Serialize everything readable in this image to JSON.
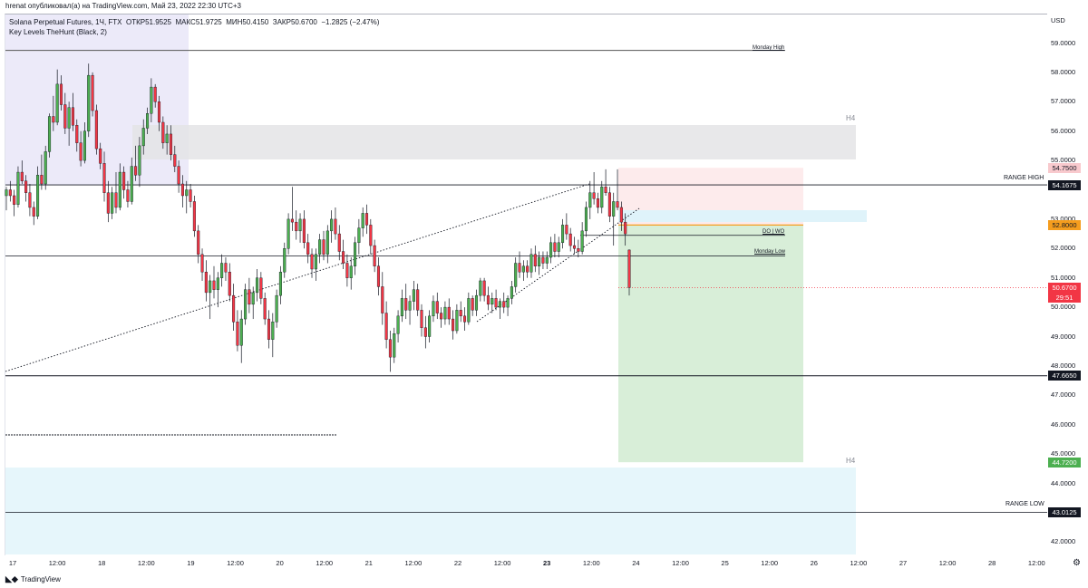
{
  "header": {
    "publish_line": "hrenat опубликовал(а) на TradingView.com, Май 23, 2022 22:30 UTC+3"
  },
  "legend": {
    "symbol": "Solana Perpetual Futures, 1Ч, FTX",
    "open_label": "ОТКР",
    "open": "51.9525",
    "high_label": "МАКС",
    "high": "51.9725",
    "low_label": "МИН",
    "low": "50.4150",
    "close_label": "ЗАКР",
    "close": "50.6700",
    "change": "−1.2825 (−2.47%)",
    "indicator": "Key Levels TheHunt (Black, 2)"
  },
  "price_axis": {
    "currency": "USD",
    "labels": [
      "59.0000",
      "58.0000",
      "57.0000",
      "56.0000",
      "55.0000",
      "53.0000",
      "52.0000",
      "51.0000",
      "50.0000",
      "49.0000",
      "48.0000",
      "47.0000",
      "46.0000",
      "45.0000",
      "44.0000",
      "42.0000"
    ],
    "tags": [
      {
        "value": "54.7500",
        "bg": "#f8c9cd",
        "fg": "#131722"
      },
      {
        "value": "54.1675",
        "bg": "#131722",
        "fg": "#ffffff"
      },
      {
        "value": "52.8000",
        "bg": "#f59d1e",
        "fg": "#131722"
      },
      {
        "value": "50.6700",
        "bg": "#f23645",
        "fg": "#ffffff"
      },
      {
        "value": "47.6650",
        "bg": "#131722",
        "fg": "#ffffff"
      },
      {
        "value": "44.7200",
        "bg": "#4caf50",
        "fg": "#ffffff"
      },
      {
        "value": "43.0125",
        "bg": "#131722",
        "fg": "#ffffff"
      }
    ],
    "countdown": "29:51"
  },
  "time_axis": [
    "17",
    "12:00",
    "18",
    "12:00",
    "19",
    "12:00",
    "20",
    "12:00",
    "21",
    "12:00",
    "22",
    "12:00",
    "23",
    "12:00",
    "24",
    "12:00",
    "25",
    "12:00",
    "26",
    "12:00",
    "27",
    "12:00",
    "28",
    "12:00"
  ],
  "levels": {
    "monday_high": "Monday High",
    "monday_low": "Monday Low",
    "do_wo": "DO | WO",
    "range_high": "RANGE HIGH",
    "range_low": "RANGE LOW",
    "h4_top": "H4",
    "h4_bottom": "H4"
  },
  "footer": {
    "brand": "TradingView"
  },
  "colors": {
    "up": "#4caf50",
    "down": "#f23645",
    "text": "#131722"
  },
  "chart_data": {
    "type": "candlestick",
    "timeframe": "1h",
    "ylim": [
      41.6,
      59.5
    ],
    "levels": {
      "monday_high": 58.75,
      "range_high": 54.1675,
      "do_wo": 52.45,
      "monday_low": 51.75,
      "range_low_line": 47.665,
      "range_low": 43.0125,
      "short_entry": 52.8,
      "short_stop": 54.75,
      "short_target": 44.72,
      "last": 50.67
    },
    "ohlc_hourly_from_may_17": [
      [
        53.8,
        54.1,
        53.3,
        54.0
      ],
      [
        54.0,
        54.3,
        53.6,
        53.8
      ],
      [
        53.8,
        54.0,
        53.1,
        53.5
      ],
      [
        53.5,
        54.8,
        53.4,
        54.6
      ],
      [
        54.6,
        55.0,
        54.2,
        54.3
      ],
      [
        54.3,
        54.5,
        53.6,
        53.9
      ],
      [
        53.9,
        54.2,
        53.1,
        53.4
      ],
      [
        53.4,
        53.6,
        52.8,
        53.1
      ],
      [
        53.1,
        54.8,
        53.0,
        54.5
      ],
      [
        54.5,
        55.2,
        54.0,
        54.2
      ],
      [
        54.2,
        55.5,
        54.0,
        55.3
      ],
      [
        55.3,
        56.6,
        55.1,
        56.5
      ],
      [
        56.5,
        57.2,
        56.0,
        56.3
      ],
      [
        56.3,
        58.1,
        56.2,
        57.6
      ],
      [
        57.6,
        57.9,
        56.7,
        56.9
      ],
      [
        56.9,
        57.3,
        55.9,
        56.1
      ],
      [
        56.1,
        57.0,
        55.5,
        56.8
      ],
      [
        56.8,
        57.3,
        56.0,
        56.2
      ],
      [
        56.2,
        56.4,
        55.3,
        55.6
      ],
      [
        55.6,
        56.0,
        54.8,
        55.0
      ],
      [
        55.0,
        56.3,
        54.9,
        56.0
      ],
      [
        56.0,
        58.3,
        55.8,
        57.9
      ],
      [
        57.9,
        58.0,
        56.5,
        56.7
      ],
      [
        56.7,
        56.9,
        55.2,
        55.4
      ],
      [
        55.4,
        55.6,
        54.7,
        54.9
      ],
      [
        54.9,
        55.3,
        53.6,
        53.9
      ],
      [
        53.9,
        54.3,
        52.9,
        53.2
      ],
      [
        53.2,
        54.1,
        53.0,
        53.9
      ],
      [
        53.9,
        54.6,
        53.2,
        53.4
      ],
      [
        53.4,
        54.9,
        53.3,
        54.6
      ],
      [
        54.6,
        54.8,
        53.7,
        54.0
      ],
      [
        54.0,
        54.3,
        53.4,
        53.6
      ],
      [
        53.6,
        55.1,
        53.5,
        54.8
      ],
      [
        54.8,
        55.5,
        54.3,
        54.5
      ],
      [
        54.5,
        55.8,
        54.1,
        55.5
      ],
      [
        55.5,
        56.4,
        55.2,
        56.1
      ],
      [
        56.1,
        56.8,
        55.9,
        56.6
      ],
      [
        56.6,
        57.8,
        56.3,
        57.5
      ],
      [
        57.5,
        57.6,
        56.8,
        57.0
      ],
      [
        57.0,
        57.2,
        56.0,
        56.3
      ],
      [
        56.3,
        56.5,
        55.4,
        55.6
      ],
      [
        55.6,
        56.2,
        55.2,
        55.9
      ],
      [
        55.9,
        56.2,
        55.0,
        55.2
      ],
      [
        55.2,
        55.5,
        54.6,
        54.8
      ],
      [
        54.8,
        55.0,
        53.9,
        54.2
      ],
      [
        54.2,
        54.5,
        53.4,
        53.8
      ],
      [
        53.8,
        54.3,
        53.2,
        54.0
      ],
      [
        54.0,
        54.2,
        53.4,
        53.6
      ],
      [
        53.6,
        53.8,
        52.4,
        52.6
      ],
      [
        52.6,
        52.8,
        51.5,
        51.8
      ],
      [
        51.8,
        52.0,
        50.9,
        51.2
      ],
      [
        51.2,
        51.6,
        50.2,
        50.5
      ],
      [
        50.5,
        51.1,
        49.6,
        50.9
      ],
      [
        50.9,
        51.4,
        50.3,
        50.6
      ],
      [
        50.6,
        51.2,
        50.0,
        51.0
      ],
      [
        51.0,
        51.8,
        50.7,
        51.5
      ],
      [
        51.5,
        51.7,
        50.9,
        51.2
      ],
      [
        51.2,
        51.5,
        50.2,
        50.4
      ],
      [
        50.4,
        50.8,
        49.2,
        49.5
      ],
      [
        49.5,
        49.9,
        48.5,
        48.7
      ],
      [
        48.7,
        49.9,
        48.1,
        49.6
      ],
      [
        49.6,
        50.8,
        49.4,
        50.6
      ],
      [
        50.6,
        51.0,
        49.8,
        50.1
      ],
      [
        50.1,
        50.7,
        49.6,
        50.5
      ],
      [
        50.5,
        51.3,
        50.2,
        51.0
      ],
      [
        51.0,
        51.2,
        50.1,
        50.3
      ],
      [
        50.3,
        50.5,
        49.4,
        49.6
      ],
      [
        49.6,
        49.9,
        48.6,
        48.9
      ],
      [
        48.9,
        49.8,
        48.3,
        49.5
      ],
      [
        49.5,
        50.6,
        49.3,
        50.4
      ],
      [
        50.4,
        51.4,
        50.1,
        51.2
      ],
      [
        51.2,
        52.2,
        51.0,
        52.0
      ],
      [
        52.0,
        53.2,
        51.8,
        53.0
      ],
      [
        53.0,
        54.1,
        52.6,
        52.9
      ],
      [
        52.9,
        53.3,
        52.3,
        52.6
      ],
      [
        52.6,
        53.2,
        52.2,
        53.0
      ],
      [
        53.0,
        53.3,
        52.0,
        52.2
      ],
      [
        52.2,
        52.5,
        51.5,
        51.8
      ],
      [
        51.8,
        52.0,
        51.0,
        51.3
      ],
      [
        51.3,
        52.0,
        50.9,
        51.8
      ],
      [
        51.8,
        52.5,
        51.5,
        52.3
      ],
      [
        52.3,
        52.6,
        51.6,
        51.8
      ],
      [
        51.8,
        52.8,
        51.5,
        52.6
      ],
      [
        52.6,
        53.3,
        52.2,
        53.0
      ],
      [
        53.0,
        53.4,
        52.3,
        52.5
      ],
      [
        52.5,
        52.8,
        51.6,
        51.9
      ],
      [
        51.9,
        52.3,
        51.3,
        51.5
      ],
      [
        51.5,
        51.8,
        50.7,
        51.0
      ],
      [
        51.0,
        51.7,
        50.6,
        51.4
      ],
      [
        51.4,
        52.4,
        51.1,
        52.2
      ],
      [
        52.2,
        53.0,
        51.8,
        52.7
      ],
      [
        52.7,
        53.4,
        52.4,
        53.2
      ],
      [
        53.2,
        53.5,
        52.5,
        52.8
      ],
      [
        52.8,
        53.0,
        51.8,
        52.1
      ],
      [
        52.1,
        52.3,
        51.2,
        51.4
      ],
      [
        51.4,
        51.7,
        50.4,
        50.7
      ],
      [
        50.7,
        51.2,
        49.4,
        49.8
      ],
      [
        49.8,
        50.2,
        48.6,
        48.9
      ],
      [
        48.9,
        49.2,
        47.8,
        48.3
      ],
      [
        48.3,
        49.3,
        48.1,
        49.1
      ],
      [
        49.1,
        49.9,
        48.8,
        49.7
      ],
      [
        49.7,
        50.6,
        49.5,
        50.3
      ],
      [
        50.3,
        50.8,
        49.6,
        49.9
      ],
      [
        49.9,
        50.4,
        49.4,
        50.2
      ],
      [
        50.2,
        50.9,
        49.9,
        50.6
      ],
      [
        50.6,
        50.8,
        49.7,
        49.9
      ],
      [
        49.9,
        50.1,
        49.0,
        49.3
      ],
      [
        49.3,
        49.7,
        48.6,
        49.0
      ],
      [
        49.0,
        49.9,
        48.8,
        49.7
      ],
      [
        49.7,
        50.4,
        49.5,
        50.2
      ],
      [
        50.2,
        50.5,
        49.6,
        49.8
      ],
      [
        49.8,
        50.0,
        49.3,
        49.6
      ],
      [
        49.6,
        50.2,
        49.4,
        50.0
      ],
      [
        50.0,
        50.3,
        49.4,
        49.6
      ],
      [
        49.6,
        49.9,
        48.9,
        49.2
      ],
      [
        49.2,
        50.1,
        49.1,
        49.9
      ],
      [
        49.9,
        50.2,
        49.5,
        49.7
      ],
      [
        49.7,
        50.0,
        49.2,
        49.5
      ],
      [
        49.5,
        50.5,
        49.4,
        50.3
      ],
      [
        50.3,
        50.4,
        49.7,
        49.9
      ],
      [
        49.9,
        50.6,
        49.7,
        50.4
      ],
      [
        50.4,
        51.0,
        50.2,
        50.9
      ],
      [
        50.9,
        51.0,
        50.2,
        50.4
      ],
      [
        50.4,
        50.7,
        49.9,
        50.1
      ],
      [
        50.1,
        50.5,
        49.8,
        50.3
      ],
      [
        50.3,
        50.6,
        49.9,
        50.0
      ],
      [
        50.0,
        50.3,
        49.6,
        50.2
      ],
      [
        50.2,
        50.5,
        49.8,
        50.0
      ],
      [
        50.0,
        50.4,
        49.7,
        50.3
      ],
      [
        50.3,
        50.9,
        50.1,
        50.7
      ],
      [
        50.7,
        51.7,
        50.5,
        51.5
      ],
      [
        51.5,
        51.9,
        51.0,
        51.2
      ],
      [
        51.2,
        51.6,
        50.9,
        51.4
      ],
      [
        51.4,
        51.6,
        51.0,
        51.2
      ],
      [
        51.2,
        52.0,
        51.0,
        51.8
      ],
      [
        51.8,
        52.1,
        51.2,
        51.4
      ],
      [
        51.4,
        51.9,
        51.1,
        51.7
      ],
      [
        51.7,
        51.9,
        51.3,
        51.5
      ],
      [
        51.5,
        51.9,
        51.3,
        51.7
      ],
      [
        51.7,
        52.4,
        51.5,
        52.2
      ],
      [
        52.2,
        52.5,
        51.7,
        51.9
      ],
      [
        51.9,
        52.4,
        51.7,
        52.2
      ],
      [
        52.2,
        53.0,
        52.0,
        52.8
      ],
      [
        52.8,
        53.2,
        52.3,
        52.5
      ],
      [
        52.5,
        52.7,
        51.9,
        52.1
      ],
      [
        52.1,
        52.4,
        51.8,
        52.0
      ],
      [
        52.0,
        52.3,
        51.7,
        51.9
      ],
      [
        51.9,
        52.9,
        51.8,
        52.6
      ],
      [
        52.6,
        53.6,
        52.4,
        53.4
      ],
      [
        53.4,
        54.3,
        53.0,
        53.9
      ],
      [
        53.9,
        54.6,
        53.5,
        53.7
      ],
      [
        53.7,
        53.9,
        53.2,
        53.4
      ],
      [
        53.4,
        54.3,
        53.2,
        54.1
      ],
      [
        54.1,
        54.7,
        53.8,
        53.9
      ],
      [
        53.9,
        54.1,
        52.9,
        53.1
      ],
      [
        53.1,
        53.9,
        52.1,
        53.6
      ],
      [
        53.6,
        54.7,
        53.3,
        53.4
      ],
      [
        53.4,
        53.6,
        52.6,
        52.9
      ],
      [
        52.9,
        53.2,
        52.1,
        52.5
      ],
      [
        51.95,
        51.97,
        50.4,
        50.67
      ]
    ]
  }
}
